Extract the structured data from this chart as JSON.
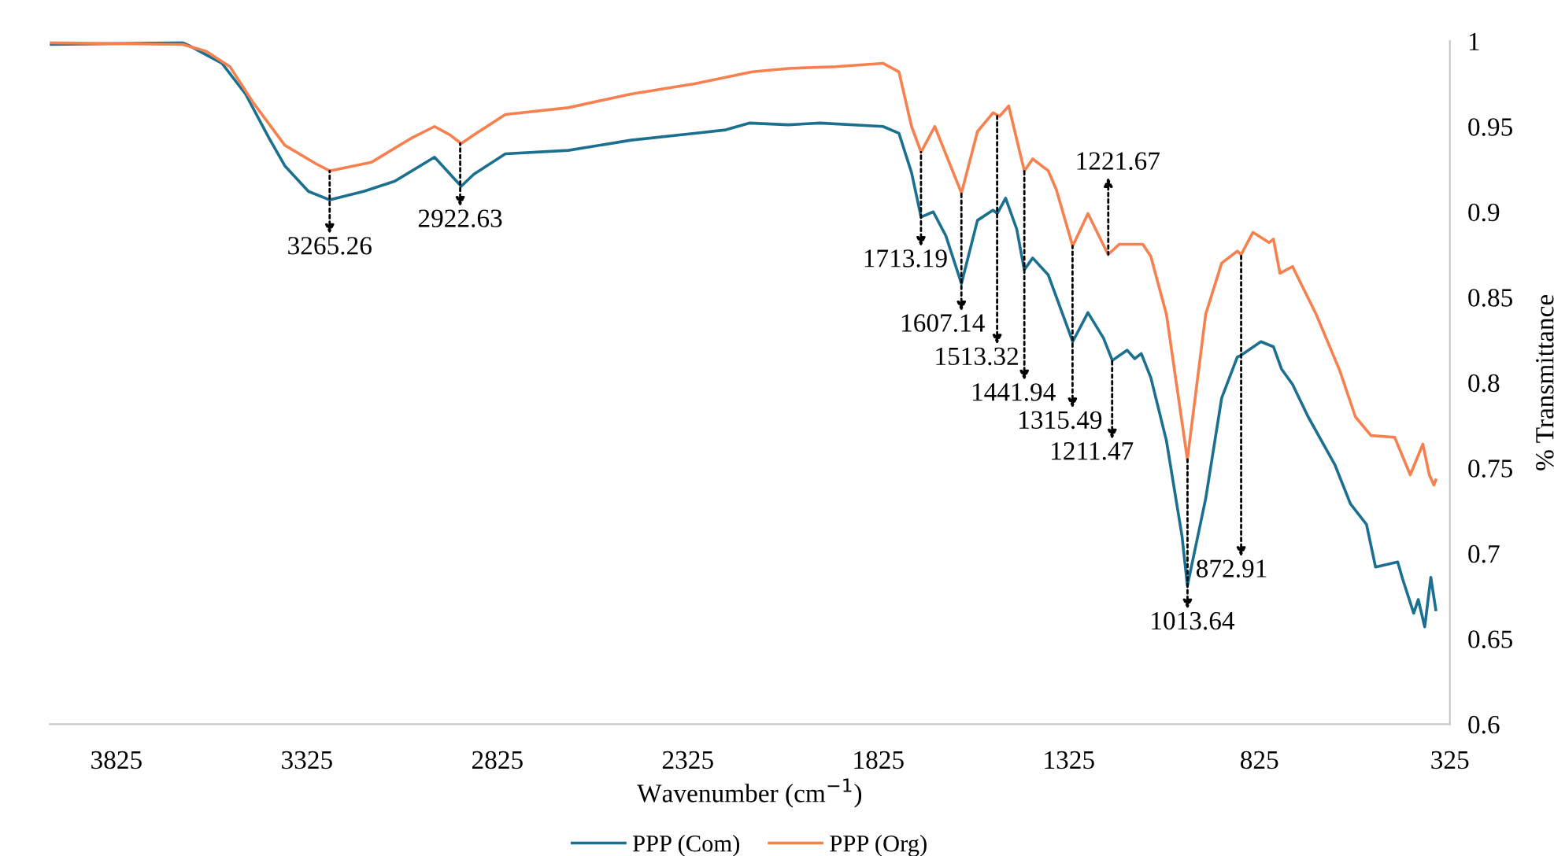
{
  "chart_data": {
    "type": "line",
    "xlabel": "Wavenumber (cm$^{−1}$)",
    "ylabel": "% Transmittance",
    "xlim": [
      4000,
      325
    ],
    "xticks": [
      3825,
      3325,
      2825,
      2325,
      1825,
      1325,
      825,
      325
    ],
    "ylim": [
      0.6,
      1
    ],
    "yticks": [
      0.6,
      0.65,
      0.7,
      0.75,
      0.8,
      0.85,
      0.9,
      0.95,
      1
    ],
    "grid": false,
    "legend": "bottom",
    "marker": "none",
    "line_style": "solid",
    "series": [
      {
        "name": "PPP (Com)",
        "color": "#1b6f8f",
        "x": [
          4000,
          3651,
          3631,
          3548,
          3486,
          3424,
          3383,
          3321,
          3265,
          3176,
          3094,
          2990,
          2920,
          2887,
          2804,
          2639,
          2474,
          2308,
          2226,
          2164,
          2061,
          1978,
          1813,
          1771,
          1738,
          1713,
          1681,
          1648,
          1607,
          1565,
          1524,
          1513,
          1491,
          1462,
          1442,
          1420,
          1379,
          1315,
          1275,
          1234,
          1211,
          1172,
          1152,
          1135,
          1110,
          1069,
          1028,
          1014,
          966,
          924,
          883,
          873,
          821,
          788,
          767,
          738,
          697,
          627,
          586,
          544,
          520,
          462,
          449,
          420,
          408,
          391,
          375,
          362
        ],
        "values": [
          0.998,
          0.999,
          0.997,
          0.987,
          0.969,
          0.943,
          0.927,
          0.912,
          0.907,
          0.912,
          0.918,
          0.932,
          0.915,
          0.922,
          0.934,
          0.936,
          0.942,
          0.946,
          0.948,
          0.952,
          0.951,
          0.952,
          0.95,
          0.946,
          0.923,
          0.897,
          0.9,
          0.886,
          0.858,
          0.895,
          0.901,
          0.899,
          0.908,
          0.89,
          0.866,
          0.873,
          0.863,
          0.824,
          0.841,
          0.826,
          0.813,
          0.819,
          0.814,
          0.817,
          0.803,
          0.766,
          0.71,
          0.681,
          0.732,
          0.791,
          0.815,
          0.816,
          0.824,
          0.821,
          0.808,
          0.799,
          0.78,
          0.752,
          0.729,
          0.717,
          0.692,
          0.695,
          0.685,
          0.665,
          0.673,
          0.657,
          0.686,
          0.667
        ]
      },
      {
        "name": "PPP (Org)",
        "color": "#f7804f",
        "x": [
          4000,
          3651,
          3589,
          3527,
          3466,
          3383,
          3300,
          3265,
          3156,
          3052,
          2990,
          2949,
          2920,
          2887,
          2804,
          2639,
          2474,
          2308,
          2156,
          2061,
          1937,
          1813,
          1771,
          1738,
          1713,
          1677,
          1607,
          1565,
          1524,
          1507,
          1483,
          1442,
          1420,
          1379,
          1358,
          1315,
          1275,
          1222,
          1193,
          1131,
          1110,
          1069,
          1014,
          966,
          924,
          883,
          873,
          842,
          800,
          788,
          771,
          738,
          676,
          614,
          573,
          532,
          470,
          429,
          396,
          379,
          367,
          362
        ],
        "values": [
          0.999,
          0.998,
          0.994,
          0.985,
          0.964,
          0.939,
          0.928,
          0.924,
          0.929,
          0.943,
          0.95,
          0.945,
          0.94,
          0.945,
          0.957,
          0.961,
          0.969,
          0.975,
          0.982,
          0.984,
          0.985,
          0.987,
          0.982,
          0.95,
          0.935,
          0.95,
          0.911,
          0.947,
          0.958,
          0.956,
          0.962,
          0.924,
          0.931,
          0.924,
          0.913,
          0.88,
          0.899,
          0.875,
          0.881,
          0.881,
          0.874,
          0.84,
          0.755,
          0.84,
          0.87,
          0.877,
          0.875,
          0.888,
          0.882,
          0.884,
          0.864,
          0.868,
          0.84,
          0.807,
          0.78,
          0.769,
          0.768,
          0.746,
          0.764,
          0.746,
          0.74,
          0.743
        ]
      }
    ],
    "annotations": [
      {
        "text": "3265.26",
        "x": 3265.26,
        "y": 0.924
      },
      {
        "text": "2922.63",
        "x": 2922.63,
        "y": 0.94
      },
      {
        "text": "1713.19",
        "x": 1713.19,
        "y": 0.935
      },
      {
        "text": "1607.14",
        "x": 1607.14,
        "y": 0.911
      },
      {
        "text": "1513.32",
        "x": 1513.32,
        "y": 0.956
      },
      {
        "text": "1441.94",
        "x": 1441.94,
        "y": 0.924
      },
      {
        "text": "1315.49",
        "x": 1315.49,
        "y": 0.88
      },
      {
        "text": "1211.47",
        "x": 1211.47,
        "y": 0.813
      },
      {
        "text": "1221.67",
        "x": 1221.67,
        "y": 0.875
      },
      {
        "text": "1013.64",
        "x": 1013.64,
        "y": 0.755
      },
      {
        "text": "872.91",
        "x": 872.91,
        "y": 0.875
      }
    ]
  }
}
